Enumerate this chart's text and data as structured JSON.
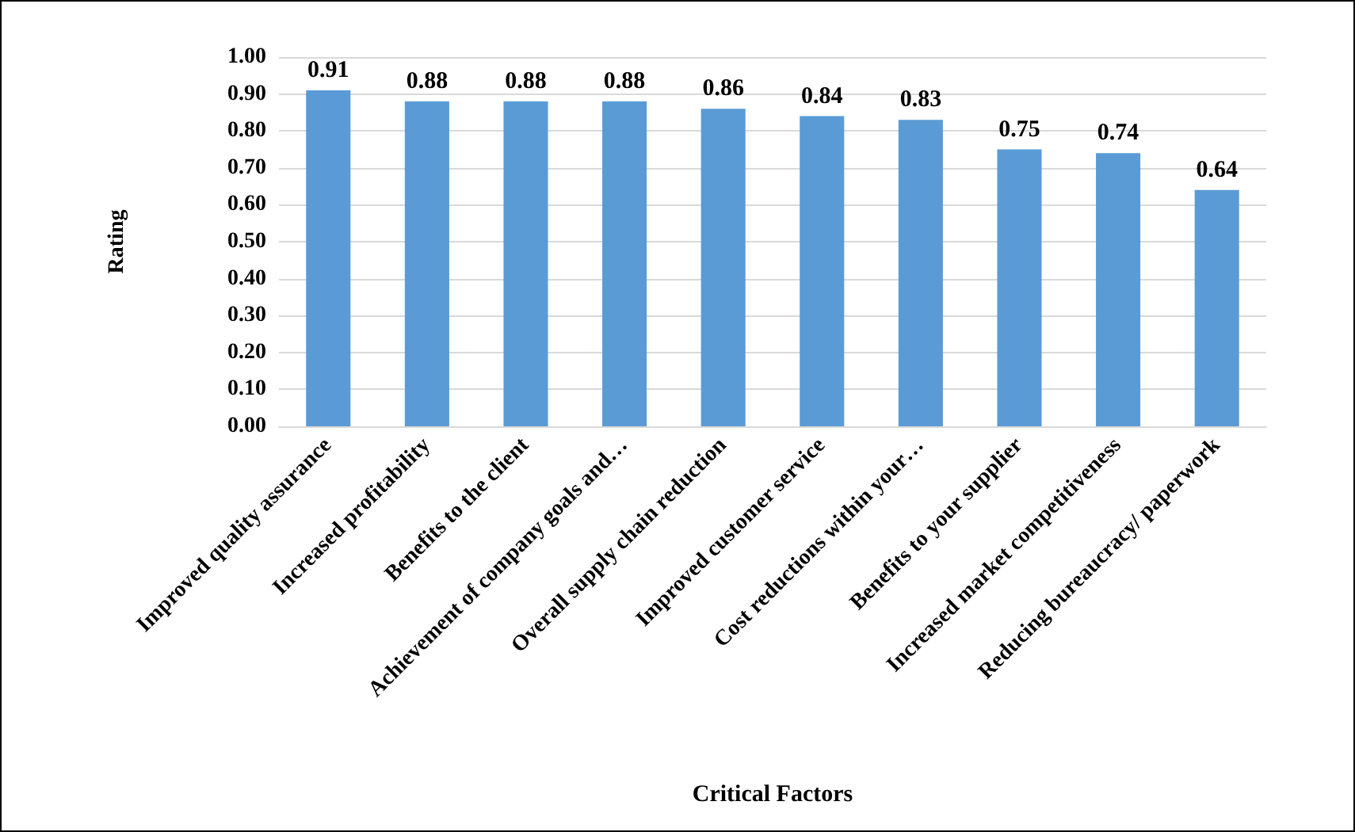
{
  "chart_data": {
    "type": "bar",
    "categories": [
      "Improved quality assurance",
      "Increased profitability",
      "Benefits to the client",
      "Achievement of company goals and…",
      "Overall supply chain reduction",
      "Improved customer service",
      "Cost reductions within your…",
      "Benefits to your supplier",
      "Increased market competitiveness",
      "Reducing bureaucracy/ paperwork"
    ],
    "values": [
      0.91,
      0.88,
      0.88,
      0.88,
      0.86,
      0.84,
      0.83,
      0.75,
      0.74,
      0.64
    ],
    "color": "#5b9bd5",
    "data_labels": true,
    "xlabel": "Critical Factors",
    "ylabel": "Rating",
    "ylim": [
      0,
      1
    ],
    "yticks": [
      {
        "value": 0,
        "label": "0.00"
      },
      {
        "value": 0.1,
        "label": "0.10"
      },
      {
        "value": 0.2,
        "label": "0.20"
      },
      {
        "value": 0.3,
        "label": "0.30"
      },
      {
        "value": 0.4,
        "label": "0.40"
      },
      {
        "value": 0.5,
        "label": "0.50"
      },
      {
        "value": 0.6,
        "label": "0.60"
      },
      {
        "value": 0.7,
        "label": "0.70"
      },
      {
        "value": 0.8,
        "label": "0.80"
      },
      {
        "value": 0.9,
        "label": "0.90"
      },
      {
        "value": 1,
        "label": "1.00"
      }
    ],
    "grid": "y"
  }
}
